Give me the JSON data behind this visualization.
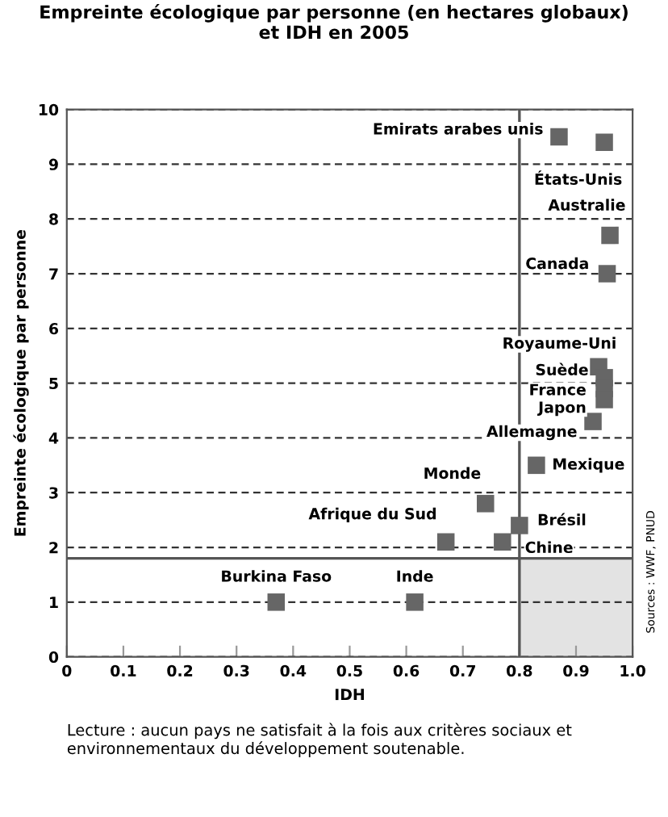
{
  "chart_data": {
    "type": "scatter",
    "title": "Empreinte écologique par personne (en hectares globaux)\net IDH en 2005",
    "xlabel": "IDH",
    "ylabel": "Empreinte écologique par personne",
    "x": [
      0.87,
      0.95,
      0.96,
      0.955,
      0.94,
      0.95,
      0.95,
      0.95,
      0.93,
      0.83,
      0.74,
      0.67,
      0.8,
      0.77,
      0.37,
      0.615
    ],
    "series": [
      {
        "color": "#666666",
        "values": [
          9.5,
          9.4,
          7.7,
          7.0,
          5.3,
          5.1,
          4.9,
          4.7,
          4.3,
          3.5,
          2.8,
          2.1,
          2.4,
          2.1,
          1.0,
          1.0
        ]
      }
    ],
    "marker": "square",
    "xlim": [
      0,
      1.0
    ],
    "ylim": [
      0,
      10
    ],
    "xticks": [
      0,
      0.1,
      0.2,
      0.3,
      0.4,
      0.5,
      0.6,
      0.7,
      0.8,
      0.9,
      {
        "value": 1.0,
        "label": "1.0"
      }
    ],
    "yticks": [
      0,
      1,
      2,
      3,
      4,
      5,
      6,
      7,
      8,
      9,
      10
    ],
    "grid": "y",
    "line_style": "dashed",
    "ref_lines": [
      {
        "axis": "y",
        "value": 1.8,
        "color": "#555555"
      },
      {
        "axis": "x",
        "value": 0.8,
        "color": "#555555"
      }
    ],
    "bands": [
      {
        "axis": "y",
        "from": 0,
        "to": 1.8,
        "color": "#e3e3e3"
      }
    ],
    "annotations": [
      {
        "text": "Emirats arabes unis",
        "x": 0.87,
        "y": 9.5
      },
      {
        "text": "États-Unis",
        "x": 0.95,
        "y": 9.4
      },
      {
        "text": "Australie",
        "x": 0.96,
        "y": 7.7
      },
      {
        "text": "Canada",
        "x": 0.955,
        "y": 7.0
      },
      {
        "text": "Royaume-Uni",
        "x": 0.94,
        "y": 5.3
      },
      {
        "text": "Suède",
        "x": 0.95,
        "y": 5.1
      },
      {
        "text": "France",
        "x": 0.95,
        "y": 4.9
      },
      {
        "text": "Japon",
        "x": 0.95,
        "y": 4.7
      },
      {
        "text": "Allemagne",
        "x": 0.93,
        "y": 4.3
      },
      {
        "text": "Mexique",
        "x": 0.83,
        "y": 3.5
      },
      {
        "text": "Monde",
        "x": 0.74,
        "y": 2.8
      },
      {
        "text": "Afrique du Sud",
        "x": 0.67,
        "y": 2.1
      },
      {
        "text": "Brésil",
        "x": 0.8,
        "y": 2.4
      },
      {
        "text": "Chine",
        "x": 0.77,
        "y": 2.1
      },
      {
        "text": "Burkina Faso",
        "x": 0.37,
        "y": 1.0
      },
      {
        "text": "Inde",
        "x": 0.615,
        "y": 1.0
      },
      "Sources : WWF, PNUD",
      "Lecture : aucun pays ne satisfait à la fois aux critères sociaux et environnementaux du développement soutenable."
    ]
  }
}
